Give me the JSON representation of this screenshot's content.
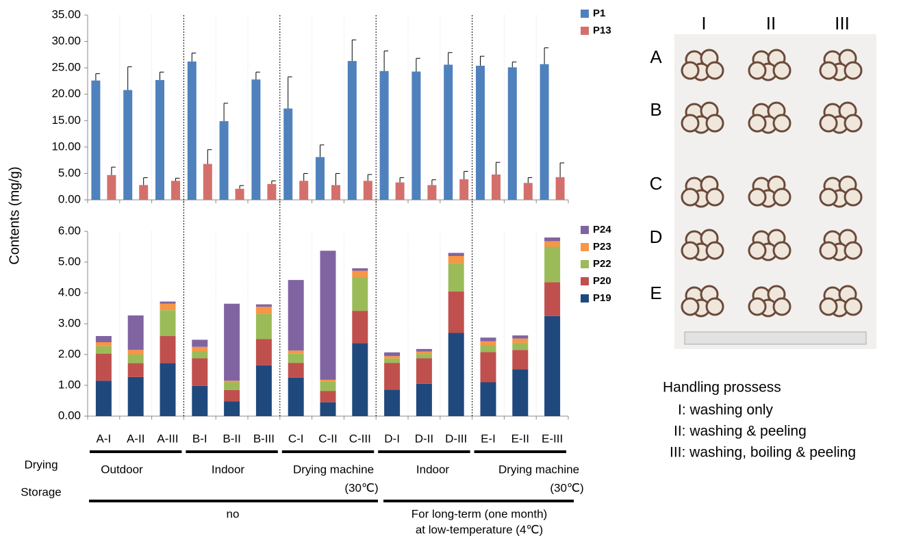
{
  "ylabel": "Contents (mg/g)",
  "chart_data": [
    {
      "type": "bar",
      "ylim": [
        0,
        35
      ],
      "yticks": [
        {
          "value": 0,
          "label": "0.00"
        },
        {
          "value": 5,
          "label": "5.00"
        },
        {
          "value": 10,
          "label": "10.00"
        },
        {
          "value": 15,
          "label": "15.00"
        },
        {
          "value": 20,
          "label": "20.00"
        },
        {
          "value": 25,
          "label": "25.00"
        },
        {
          "value": 30,
          "label": "30.00"
        },
        {
          "value": 35,
          "label": "35.00"
        }
      ],
      "series": [
        {
          "name": "P1",
          "color": "#4f81bd",
          "values": [
            22.6,
            20.8,
            22.7,
            26.2,
            14.9,
            22.8,
            17.3,
            8.1,
            26.3,
            24.4,
            24.3,
            25.6,
            25.4,
            25.1,
            25.7
          ],
          "errors": [
            1.3,
            4.4,
            1.5,
            1.6,
            3.4,
            1.4,
            6.0,
            2.3,
            4.0,
            3.8,
            2.5,
            2.3,
            1.8,
            1.0,
            3.1
          ]
        },
        {
          "name": "P13",
          "color": "#d4706c",
          "values": [
            4.7,
            2.8,
            3.6,
            6.8,
            2.1,
            3.0,
            3.6,
            2.8,
            3.6,
            3.3,
            2.8,
            3.9,
            4.8,
            3.2,
            4.3
          ],
          "errors": [
            1.5,
            1.4,
            0.5,
            2.7,
            0.6,
            0.6,
            1.4,
            2.2,
            1.2,
            0.9,
            1.0,
            1.5,
            2.3,
            1.0,
            2.7
          ]
        }
      ]
    },
    {
      "type": "stacked_bar",
      "categories": [
        "A-I",
        "A-II",
        "A-III",
        "B-I",
        "B-II",
        "B-III",
        "C-I",
        "C-II",
        "C-III",
        "D-I",
        "D-II",
        "D-III",
        "E-I",
        "E-II",
        "E-III"
      ],
      "ylim": [
        0,
        6
      ],
      "yticks": [
        {
          "value": 0,
          "label": "0.00"
        },
        {
          "value": 1,
          "label": "1.00"
        },
        {
          "value": 2,
          "label": "2.00"
        },
        {
          "value": 3,
          "label": "3.00"
        },
        {
          "value": 4,
          "label": "4.00"
        },
        {
          "value": 5,
          "label": "5.00"
        },
        {
          "value": 6,
          "label": "6.00"
        }
      ],
      "series": [
        {
          "name": "P19",
          "color": "#1f497d",
          "values": [
            1.15,
            1.27,
            1.72,
            0.98,
            0.48,
            1.65,
            1.25,
            0.45,
            2.37,
            0.86,
            1.05,
            2.7,
            1.1,
            1.52,
            3.25
          ]
        },
        {
          "name": "P20",
          "color": "#c0504d",
          "values": [
            0.88,
            0.45,
            0.88,
            0.9,
            0.37,
            0.85,
            0.48,
            0.37,
            1.05,
            0.87,
            0.83,
            1.35,
            0.98,
            0.63,
            1.1
          ]
        },
        {
          "name": "P22",
          "color": "#9bbb59",
          "values": [
            0.24,
            0.28,
            0.84,
            0.22,
            0.25,
            0.82,
            0.3,
            0.3,
            1.08,
            0.14,
            0.14,
            0.92,
            0.22,
            0.23,
            1.15
          ]
        },
        {
          "name": "P23",
          "color": "#f79646",
          "values": [
            0.13,
            0.15,
            0.21,
            0.15,
            0.05,
            0.23,
            0.1,
            0.06,
            0.22,
            0.08,
            0.08,
            0.23,
            0.13,
            0.14,
            0.18
          ]
        },
        {
          "name": "P24",
          "color": "#8064a2",
          "values": [
            0.2,
            1.12,
            0.07,
            0.23,
            2.5,
            0.08,
            2.29,
            4.19,
            0.08,
            0.12,
            0.08,
            0.1,
            0.12,
            0.1,
            0.12
          ]
        }
      ]
    }
  ],
  "drying": {
    "label": "Drying",
    "groups": [
      [
        "Outdoor"
      ],
      [
        "Indoor"
      ],
      [
        "Drying machine",
        "(30℃)"
      ],
      [
        "Indoor"
      ],
      [
        "Drying machine",
        "(30℃)"
      ]
    ]
  },
  "storage": {
    "label": "Storage",
    "groups": [
      [
        "no"
      ],
      [
        "For long-term (one month)",
        "at low-temperature (4℃)"
      ]
    ]
  },
  "photo": {
    "columns": [
      "I",
      "II",
      "III"
    ],
    "rows": [
      "A",
      "B",
      "C",
      "D",
      "E"
    ]
  },
  "handling": {
    "title": "Handling prossess",
    "items": [
      "I: washing only",
      "II: washing & peeling",
      "III: washing, boiling & peeling"
    ]
  }
}
